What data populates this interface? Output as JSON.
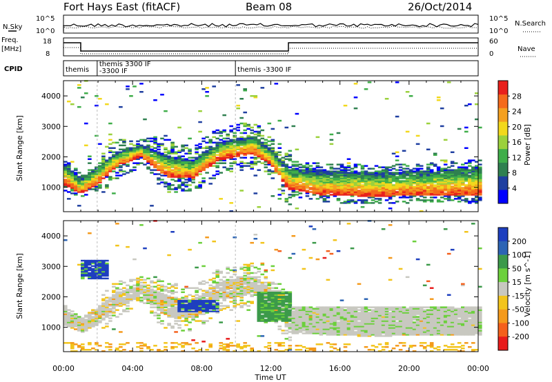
{
  "header": {
    "title": "Fort Hays East (fitACF)",
    "beam": "Beam 08",
    "date": "26/Oct/2014"
  },
  "top_panels": {
    "nsky_label": "N.Sky",
    "nsearch_label": "N.Search",
    "noise_ticks": [
      "10^5",
      "10^0"
    ],
    "freq_label_1": "Freq.",
    "freq_label_2": "[MHz]",
    "freq_ticks": [
      "18",
      "8"
    ],
    "nave_label": "Nave",
    "nave_ticks": [
      "60",
      "0"
    ],
    "cpid_label": "CPID",
    "cpid_segments": [
      {
        "label": "themis",
        "label2": "",
        "start_h": 0.0,
        "end_h": 1.95
      },
      {
        "label": "themis 3300 IF",
        "label2": "-3300 IF",
        "start_h": 1.95,
        "end_h": 9.95
      },
      {
        "label": "themis -3300 IF",
        "label2": "",
        "start_h": 9.95,
        "end_h": 24.0
      }
    ]
  },
  "chart_data": [
    {
      "type": "heatmap",
      "name": "power",
      "xlabel": "Time UT",
      "ylabel": "Slant Range [km]",
      "xlim": [
        0,
        24
      ],
      "ylim": [
        200,
        4500
      ],
      "x_ticks": [
        "00:00",
        "04:00",
        "08:00",
        "12:00",
        "16:00",
        "20:00",
        "00:00"
      ],
      "y_ticks": [
        1000,
        2000,
        3000,
        4000
      ],
      "colorbar": {
        "label": "Power [dB]",
        "range": [
          0,
          32
        ],
        "ticks": [
          4,
          8,
          12,
          16,
          20,
          24,
          28
        ],
        "colors": [
          "#0000ff",
          "#1f3fa0",
          "#2f8050",
          "#3fae4a",
          "#9bd13c",
          "#f2d81c",
          "#f4a020",
          "#f46a1c",
          "#e8201c"
        ]
      },
      "band": [
        {
          "t": 0.0,
          "center": 1450,
          "width": 700
        },
        {
          "t": 1.0,
          "center": 1050,
          "width": 500
        },
        {
          "t": 2.0,
          "center": 1400,
          "width": 600
        },
        {
          "t": 3.0,
          "center": 1900,
          "width": 500
        },
        {
          "t": 4.5,
          "center": 2200,
          "width": 400
        },
        {
          "t": 6.0,
          "center": 1700,
          "width": 700
        },
        {
          "t": 7.5,
          "center": 1600,
          "width": 600
        },
        {
          "t": 9.0,
          "center": 2200,
          "width": 600
        },
        {
          "t": 11.0,
          "center": 2400,
          "width": 600
        },
        {
          "t": 12.0,
          "center": 2000,
          "width": 500
        },
        {
          "t": 13.0,
          "center": 1300,
          "width": 700
        },
        {
          "t": 15.0,
          "center": 1150,
          "width": 800
        },
        {
          "t": 18.0,
          "center": 1100,
          "width": 800
        },
        {
          "t": 21.0,
          "center": 1150,
          "width": 800
        },
        {
          "t": 24.0,
          "center": 1200,
          "width": 900
        }
      ]
    },
    {
      "type": "heatmap",
      "name": "velocity",
      "xlabel": "Time UT",
      "ylabel": "Slant Range [km]",
      "xlim": [
        0,
        24
      ],
      "ylim": [
        200,
        4500
      ],
      "x_ticks": [
        "00:00",
        "04:00",
        "08:00",
        "12:00",
        "16:00",
        "20:00",
        "00:00"
      ],
      "y_ticks": [
        1000,
        2000,
        3000,
        4000
      ],
      "colorbar": {
        "label": "Velocity [m s^-1]",
        "tick_labels": [
          "200",
          "100",
          "50",
          "15",
          "-15",
          "-50",
          "-100",
          "-200"
        ],
        "colors": [
          "#1e3fbf",
          "#2c64b4",
          "#3c9a4a",
          "#6cd03c",
          "#c8c8c0",
          "#f2c41c",
          "#f49a1c",
          "#f4601c",
          "#e81c1c"
        ]
      },
      "features": [
        {
          "t_start": 1.0,
          "t_end": 2.5,
          "r_start": 2600,
          "r_end": 3200,
          "velocity": 200
        },
        {
          "t_start": 6.5,
          "t_end": 8.8,
          "r_start": 1500,
          "r_end": 1900,
          "velocity": 150
        },
        {
          "t_start": 11.0,
          "t_end": 13.0,
          "r_start": 1200,
          "r_end": 2200,
          "velocity": 30
        },
        {
          "t_start": 13.0,
          "t_end": 24.0,
          "r_start": 800,
          "r_end": 1700,
          "velocity": 0
        }
      ]
    }
  ]
}
